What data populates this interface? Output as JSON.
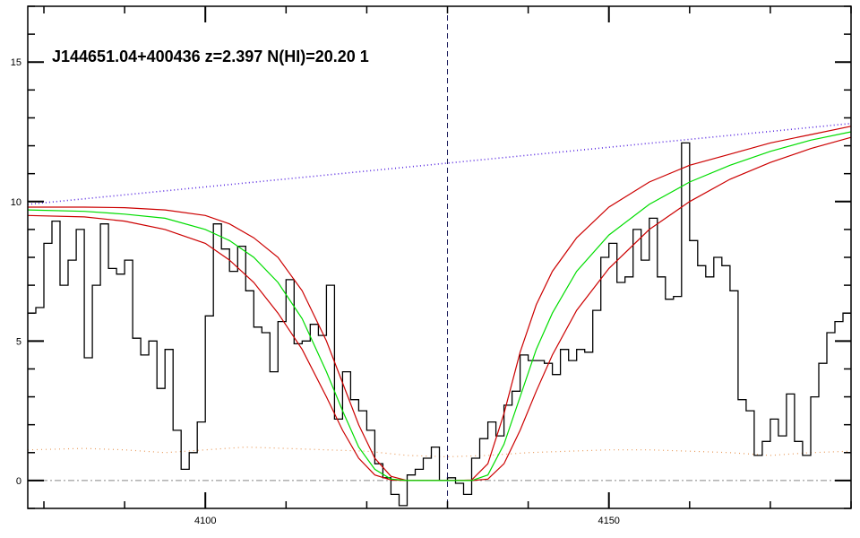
{
  "chart_data": {
    "type": "line",
    "title": "J144651.04+400436 z=2.397 N(HI)=20.20 1",
    "xlabel": "",
    "ylabel": "",
    "xlim": [
      4078,
      4180
    ],
    "ylim": [
      -1,
      17
    ],
    "x_ticks": [
      4100,
      4150
    ],
    "y_ticks": [
      0,
      5,
      10,
      15
    ],
    "grid": false,
    "legend": "none",
    "center_wavelength": 4130,
    "colors": {
      "flux": "#000000",
      "fit": "#00dd00",
      "fit_bounds": "#cc0000",
      "continuum": "#5a2be2",
      "error": "#e89a5a",
      "zero": "#888888"
    },
    "series": [
      {
        "role": "flux",
        "style": "step",
        "x": [
          4078,
          4079,
          4080,
          4081,
          4082,
          4083,
          4084,
          4085,
          4086,
          4087,
          4088,
          4089,
          4090,
          4091,
          4092,
          4093,
          4094,
          4095,
          4096,
          4097,
          4098,
          4099,
          4100,
          4101,
          4102,
          4103,
          4104,
          4105,
          4106,
          4107,
          4108,
          4109,
          4110,
          4111,
          4112,
          4113,
          4114,
          4115,
          4116,
          4117,
          4118,
          4119,
          4120,
          4121,
          4122,
          4123,
          4124,
          4125,
          4126,
          4127,
          4128,
          4129,
          4130,
          4131,
          4132,
          4133,
          4134,
          4135,
          4136,
          4137,
          4138,
          4139,
          4140,
          4141,
          4142,
          4143,
          4144,
          4145,
          4146,
          4147,
          4148,
          4149,
          4150,
          4151,
          4152,
          4153,
          4154,
          4155,
          4156,
          4157,
          4158,
          4159,
          4160,
          4161,
          4162,
          4163,
          4164,
          4165,
          4166,
          4167,
          4168,
          4169,
          4170,
          4171,
          4172,
          4173,
          4174,
          4175,
          4176,
          4177,
          4178,
          4179
        ],
        "y": [
          6.0,
          6.2,
          8.5,
          9.3,
          7.0,
          7.9,
          9.0,
          4.4,
          7.0,
          9.2,
          7.6,
          7.4,
          7.9,
          5.1,
          4.5,
          5.0,
          3.3,
          4.7,
          1.8,
          0.4,
          1.0,
          2.1,
          5.9,
          9.2,
          8.3,
          7.5,
          8.4,
          6.8,
          5.5,
          5.3,
          3.9,
          5.7,
          7.2,
          4.9,
          5.0,
          5.6,
          5.2,
          7.0,
          2.2,
          3.9,
          2.9,
          2.5,
          1.8,
          0.6,
          0.1,
          -0.5,
          -0.9,
          0.2,
          0.4,
          0.8,
          1.2,
          0.0,
          0.1,
          -0.1,
          -0.5,
          0.8,
          1.5,
          2.1,
          1.6,
          2.7,
          3.2,
          4.5,
          4.3,
          4.3,
          4.2,
          3.8,
          4.7,
          4.3,
          4.7,
          4.6,
          6.1,
          8.0,
          8.5,
          7.1,
          7.3,
          9.0,
          7.9,
          9.4,
          7.3,
          6.5,
          6.6,
          12.1,
          8.6,
          7.7,
          7.3,
          8.0,
          7.7,
          6.8,
          2.9,
          2.5,
          0.9,
          1.4,
          2.2,
          1.6,
          3.1,
          1.4,
          0.9,
          3.0,
          4.2,
          5.3,
          5.7,
          6.0
        ]
      },
      {
        "role": "fit",
        "x": [
          4078,
          4085,
          4090,
          4095,
          4100,
          4103,
          4106,
          4109,
          4112,
          4115,
          4117,
          4119,
          4121,
          4123,
          4125,
          4127,
          4129,
          4130,
          4131,
          4133,
          4135,
          4137,
          4139,
          4141,
          4143,
          4146,
          4150,
          4155,
          4160,
          4165,
          4170,
          4175,
          4180
        ],
        "y": [
          9.7,
          9.65,
          9.55,
          9.4,
          9.0,
          8.6,
          8.0,
          7.1,
          5.8,
          3.9,
          2.5,
          1.2,
          0.4,
          0.05,
          0.0,
          0.0,
          0.0,
          0.0,
          0.0,
          0.0,
          0.2,
          1.3,
          3.0,
          4.7,
          6.0,
          7.5,
          8.8,
          9.9,
          10.7,
          11.3,
          11.8,
          12.2,
          12.5
        ]
      },
      {
        "role": "fit_upper",
        "x": [
          4078,
          4085,
          4090,
          4095,
          4100,
          4103,
          4106,
          4109,
          4112,
          4115,
          4117,
          4119,
          4121,
          4123,
          4125,
          4127,
          4129,
          4130,
          4131,
          4133,
          4135,
          4137,
          4139,
          4141,
          4143,
          4146,
          4150,
          4155,
          4160,
          4165,
          4170,
          4175,
          4180
        ],
        "y": [
          9.8,
          9.8,
          9.78,
          9.7,
          9.5,
          9.2,
          8.7,
          8.0,
          6.8,
          5.0,
          3.5,
          2.0,
          0.8,
          0.15,
          0.0,
          0.0,
          0.0,
          0.0,
          0.0,
          0.02,
          0.6,
          2.4,
          4.6,
          6.3,
          7.5,
          8.7,
          9.8,
          10.7,
          11.3,
          11.7,
          12.1,
          12.4,
          12.7
        ]
      },
      {
        "role": "fit_lower",
        "x": [
          4078,
          4085,
          4090,
          4095,
          4100,
          4103,
          4106,
          4109,
          4112,
          4115,
          4117,
          4119,
          4121,
          4123,
          4125,
          4127,
          4129,
          4130,
          4131,
          4133,
          4135,
          4137,
          4139,
          4141,
          4143,
          4146,
          4150,
          4155,
          4160,
          4165,
          4170,
          4175,
          4180
        ],
        "y": [
          9.5,
          9.45,
          9.3,
          9.0,
          8.5,
          7.9,
          7.1,
          6.0,
          4.7,
          3.0,
          1.8,
          0.8,
          0.2,
          0.02,
          0.0,
          0.0,
          0.0,
          0.0,
          0.0,
          0.0,
          0.05,
          0.6,
          1.8,
          3.2,
          4.5,
          6.1,
          7.6,
          9.0,
          10.0,
          10.8,
          11.4,
          11.9,
          12.3
        ]
      },
      {
        "role": "continuum",
        "style": "dotted",
        "x": [
          4078,
          4180
        ],
        "y": [
          9.9,
          12.8
        ]
      },
      {
        "role": "error",
        "style": "dotted",
        "x": [
          4078,
          4085,
          4090,
          4095,
          4100,
          4105,
          4110,
          4115,
          4120,
          4125,
          4130,
          4135,
          4140,
          4145,
          4150,
          4155,
          4160,
          4165,
          4170,
          4175,
          4180
        ],
        "y": [
          1.1,
          1.15,
          1.1,
          1.0,
          1.1,
          1.2,
          1.15,
          1.1,
          1.05,
          0.9,
          0.85,
          0.9,
          1.0,
          1.05,
          1.1,
          1.1,
          1.05,
          1.0,
          0.9,
          1.0,
          1.05
        ]
      }
    ]
  }
}
